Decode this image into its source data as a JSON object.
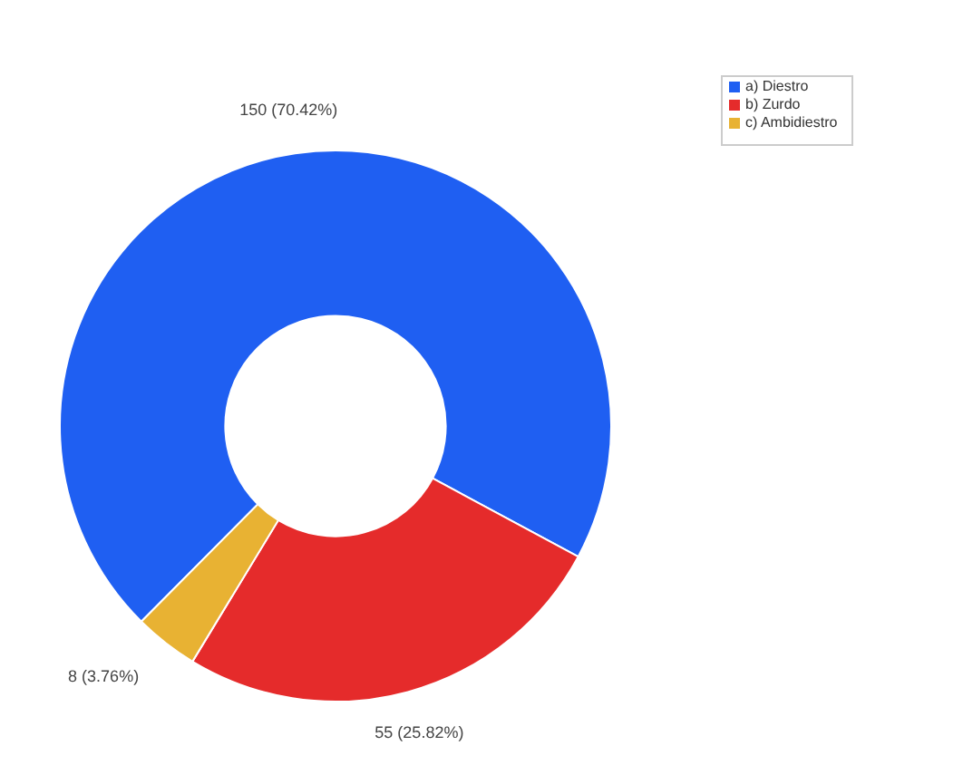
{
  "chart_data": {
    "type": "donut",
    "categories": [
      "a) Diestro",
      "b) Zurdo",
      "c) Ambidiestro"
    ],
    "values": [
      150,
      55,
      8
    ],
    "colors": [
      "#1f5ff2",
      "#e52b2b",
      "#e8b233"
    ],
    "value_labels": [
      "150 (70.42%)",
      "55 (25.82%)",
      "8 (3.76%)"
    ],
    "legend": "top right"
  }
}
